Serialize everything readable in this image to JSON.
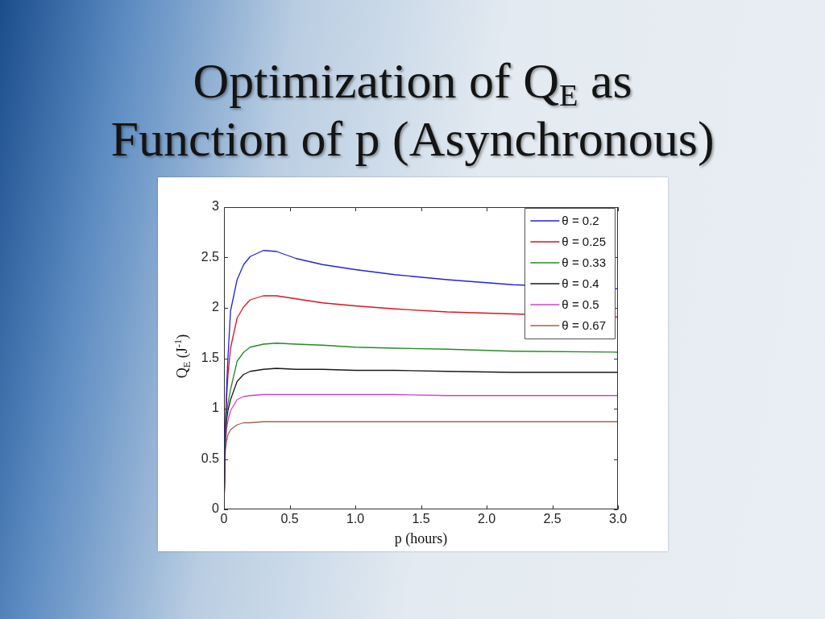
{
  "chart_data": {
    "type": "line",
    "title": "Optimization of Q$_{E}$ as\nFunction of p (Asynchronous)",
    "xlabel": "p (hours)",
    "ylabel": "Q$_{E}$ (J$^{-1}$)",
    "x": [
      0,
      0.01,
      0.02,
      0.03,
      0.05,
      0.1,
      0.15,
      0.2,
      0.3,
      0.4,
      0.55,
      0.75,
      1.0,
      1.3,
      1.7,
      2.2,
      3.0
    ],
    "series": [
      {
        "name": "θ = 0.2",
        "color": "#2222dd",
        "values": [
          0,
          0.8,
          1.2,
          1.5,
          1.97,
          2.28,
          2.43,
          2.51,
          2.57,
          2.56,
          2.49,
          2.43,
          2.38,
          2.33,
          2.28,
          2.23,
          2.19
        ]
      },
      {
        "name": "θ = 0.25",
        "color": "#dd1122",
        "values": [
          0,
          0.78,
          1.1,
          1.33,
          1.6,
          1.9,
          2.01,
          2.08,
          2.12,
          2.12,
          2.09,
          2.05,
          2.02,
          1.99,
          1.96,
          1.94,
          1.91
        ]
      },
      {
        "name": "θ = 0.33",
        "color": "#228b22",
        "values": [
          0,
          0.74,
          0.95,
          1.05,
          1.19,
          1.47,
          1.56,
          1.61,
          1.64,
          1.65,
          1.64,
          1.63,
          1.61,
          1.6,
          1.59,
          1.57,
          1.56
        ]
      },
      {
        "name": "θ = 0.4",
        "color": "#1a1a1a",
        "values": [
          0,
          0.7,
          0.88,
          0.98,
          1.09,
          1.27,
          1.34,
          1.37,
          1.39,
          1.4,
          1.39,
          1.39,
          1.38,
          1.38,
          1.37,
          1.36,
          1.36
        ]
      },
      {
        "name": "θ = 0.5",
        "color": "#cc44cc",
        "values": [
          0,
          0.65,
          0.8,
          0.88,
          0.98,
          1.09,
          1.12,
          1.13,
          1.14,
          1.14,
          1.14,
          1.14,
          1.14,
          1.14,
          1.13,
          1.13,
          1.13
        ]
      },
      {
        "name": "θ = 0.67",
        "color": "#a0644a",
        "values": [
          0,
          0.58,
          0.68,
          0.74,
          0.79,
          0.84,
          0.86,
          0.86,
          0.87,
          0.87,
          0.87,
          0.87,
          0.87,
          0.87,
          0.87,
          0.87,
          0.87
        ]
      }
    ],
    "xlim": [
      0,
      3
    ],
    "ylim": [
      0,
      3
    ],
    "xticks": [
      0,
      0.5,
      {
        "value": 1,
        "label": "1.0"
      },
      1.5,
      {
        "value": 2,
        "label": "2.0"
      },
      2.5,
      {
        "value": 3,
        "label": "3.0"
      }
    ],
    "yticks": [
      0,
      0.5,
      1,
      1.5,
      2,
      2.5,
      3
    ],
    "legend": "top right",
    "marker": "none",
    "line_style": "solid"
  }
}
